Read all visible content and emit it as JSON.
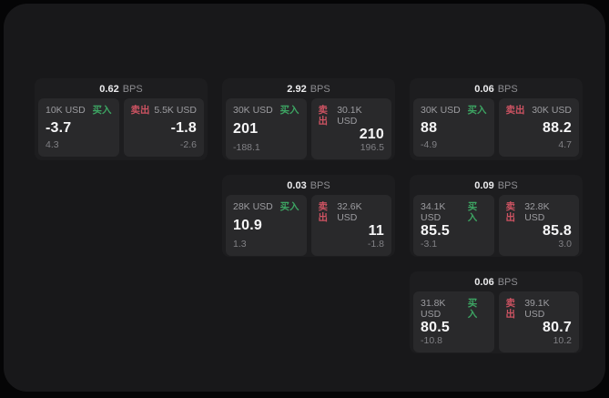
{
  "labels": {
    "bps_unit": "BPS",
    "buy": "买入",
    "sell": "卖出"
  },
  "colors": {
    "buy": "#3da563",
    "sell": "#cd5362",
    "panel_background": "#18181a",
    "card_background": "#1d1d1f",
    "tile_background": "#29292b"
  },
  "cards": [
    {
      "bps": "0.62",
      "buy": {
        "amount": "10K USD",
        "value": "-3.7",
        "sub": "4.3"
      },
      "sell": {
        "amount": "5.5K USD",
        "value": "-1.8",
        "sub": "-2.6"
      }
    },
    {
      "bps": "2.92",
      "buy": {
        "amount": "30K USD",
        "value": "201",
        "sub": "-188.1"
      },
      "sell": {
        "amount": "30.1K USD",
        "value": "210",
        "sub": "196.5"
      }
    },
    {
      "bps": "0.06",
      "buy": {
        "amount": "30K USD",
        "value": "88",
        "sub": "-4.9"
      },
      "sell": {
        "amount": "30K USD",
        "value": "88.2",
        "sub": "4.7"
      }
    },
    {
      "bps": "0.03",
      "buy": {
        "amount": "28K USD",
        "value": "10.9",
        "sub": "1.3"
      },
      "sell": {
        "amount": "32.6K USD",
        "value": "11",
        "sub": "-1.8"
      }
    },
    {
      "bps": "0.09",
      "buy": {
        "amount": "34.1K USD",
        "value": "85.5",
        "sub": "-3.1"
      },
      "sell": {
        "amount": "32.8K USD",
        "value": "85.8",
        "sub": "3.0"
      }
    },
    {
      "bps": "0.06",
      "buy": {
        "amount": "31.8K USD",
        "value": "80.5",
        "sub": "-10.8"
      },
      "sell": {
        "amount": "39.1K USD",
        "value": "80.7",
        "sub": "10.2"
      }
    }
  ]
}
